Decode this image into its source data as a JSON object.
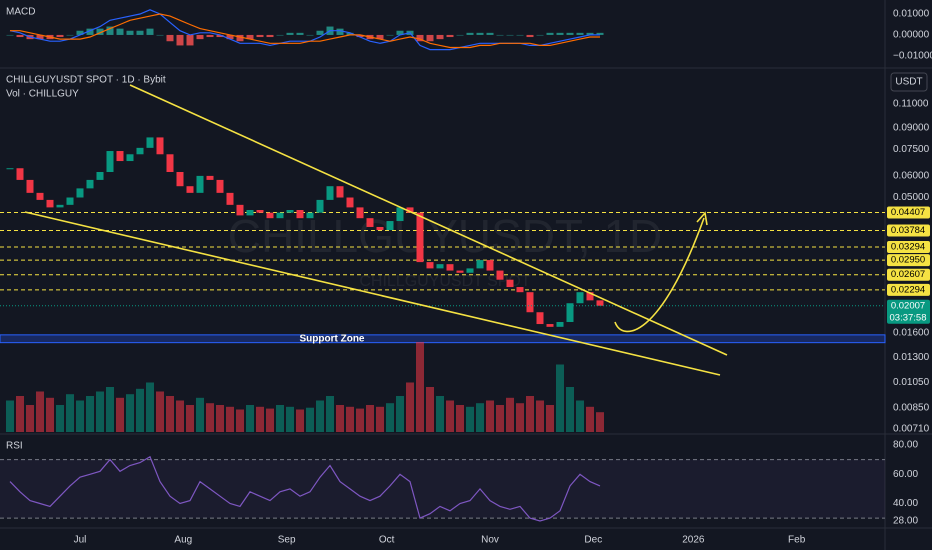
{
  "header": {
    "macd_label": "MACD",
    "symbol": "CHILLGUYUSDT SPOT · 1D · Bybit",
    "volume_label": "Vol · CHILLGUY",
    "rsi_label": "RSI",
    "currency": "USDT",
    "watermark": "CHILLGUYUSDT, 1D",
    "watermark_sub": "CHILLGUYUSDT SPOT"
  },
  "chart_data": {
    "type": "candlestick",
    "log_scale": true,
    "up_color": "#089981",
    "down_color": "#f23645",
    "x": [
      0,
      3,
      6,
      9,
      12,
      15,
      18,
      21,
      24,
      27,
      30,
      33,
      36,
      39,
      42,
      45,
      48,
      51,
      54,
      57,
      60,
      63,
      66,
      69,
      72,
      75,
      78,
      81,
      84,
      87,
      90,
      93,
      96,
      99,
      102,
      105,
      108,
      111,
      114,
      117,
      120,
      123,
      126,
      129,
      132,
      135,
      138,
      141,
      144,
      147,
      150,
      153,
      156,
      159,
      162,
      165,
      168,
      171,
      174,
      177
    ],
    "xlim": [
      -3,
      262.5
    ],
    "xticks": [
      {
        "value": 21,
        "label": "Jul"
      },
      {
        "value": 52,
        "label": "Aug"
      },
      {
        "value": 83,
        "label": "Sep"
      },
      {
        "value": 113,
        "label": "Oct"
      },
      {
        "value": 144,
        "label": "Nov"
      },
      {
        "value": 175,
        "label": "Dec"
      },
      {
        "value": 205,
        "label": "2026"
      },
      {
        "value": 236,
        "label": "Feb"
      }
    ],
    "close": [
      0.064,
      0.058,
      0.052,
      0.049,
      0.046,
      0.047,
      0.05,
      0.054,
      0.058,
      0.062,
      0.074,
      0.068,
      0.072,
      0.076,
      0.083,
      0.072,
      0.062,
      0.055,
      0.052,
      0.06,
      0.058,
      0.052,
      0.047,
      0.043,
      0.045,
      0.044,
      0.042,
      0.044,
      0.045,
      0.042,
      0.044,
      0.049,
      0.055,
      0.05,
      0.046,
      0.042,
      0.039,
      0.038,
      0.041,
      0.046,
      0.044,
      0.029,
      0.0275,
      0.0285,
      0.027,
      0.0265,
      0.0275,
      0.0295,
      0.027,
      0.025,
      0.0235,
      0.0225,
      0.019,
      0.0172,
      0.0168,
      0.0175,
      0.0205,
      0.0225,
      0.021,
      0.02007
    ],
    "ylim": [
      0.00692,
      0.1441
    ],
    "yticks": [
      {
        "value": 0.11,
        "label": "0.11000"
      },
      {
        "value": 0.09,
        "label": "0.09000"
      },
      {
        "value": 0.075,
        "label": "0.07500"
      },
      {
        "value": 0.06,
        "label": "0.06000"
      },
      {
        "value": 0.05,
        "label": "0.05000"
      },
      {
        "value": 0.016,
        "label": "0.01600"
      },
      {
        "value": 0.013,
        "label": "0.01300"
      },
      {
        "value": 0.0105,
        "label": "0.01050"
      },
      {
        "value": 0.0085,
        "label": "0.00850"
      },
      {
        "value": 0.0071,
        "label": "0.00710"
      }
    ],
    "levels": {
      "color": "#f5e243",
      "values": [
        0.04407,
        0.03784,
        0.03294,
        {
          "value": 0.0295,
          "label": "0.02950"
        },
        0.02607,
        0.02294
      ]
    },
    "last_price": {
      "value": 0.02007,
      "countdown": "03:37:58",
      "color": "#089981"
    },
    "support_zone": {
      "label": "Support Zone",
      "range": [
        0.0147,
        0.0157
      ]
    },
    "volume": [
      35,
      40,
      30,
      45,
      38,
      30,
      42,
      35,
      40,
      45,
      50,
      38,
      42,
      48,
      55,
      45,
      40,
      35,
      30,
      38,
      32,
      30,
      28,
      25,
      30,
      28,
      26,
      30,
      28,
      25,
      27,
      35,
      40,
      30,
      28,
      26,
      30,
      28,
      32,
      40,
      55,
      100,
      50,
      40,
      35,
      30,
      28,
      32,
      35,
      30,
      38,
      32,
      40,
      35,
      30,
      75,
      50,
      35,
      28,
      22
    ],
    "macd": {
      "ylim": [
        -0.0148,
        0.0157
      ],
      "yticks": [
        {
          "value": 0.01,
          "label": "0.01000"
        },
        {
          "value": 0,
          "label": "0.00000"
        },
        {
          "value": -0.01,
          "label": "−0.01000"
        }
      ],
      "macd_color": "#2962ff",
      "signal_color": "#ff6d00",
      "macd": [
        0.002,
        0.001,
        -0.001,
        -0.002,
        -0.003,
        -0.003,
        -0.002,
        0,
        0.002,
        0.004,
        0.007,
        0.008,
        0.009,
        0.01,
        0.012,
        0.01,
        0.006,
        0.002,
        0,
        0.001,
        0.001,
        0,
        -0.002,
        -0.004,
        -0.004,
        -0.004,
        -0.005,
        -0.004,
        -0.003,
        -0.003,
        -0.003,
        -0.001,
        0.002,
        0.002,
        0.001,
        -0.001,
        -0.003,
        -0.004,
        -0.003,
        0,
        0.001,
        -0.005,
        -0.007,
        -0.007,
        -0.007,
        -0.006,
        -0.005,
        -0.004,
        -0.004,
        -0.004,
        -0.004,
        -0.004,
        -0.005,
        -0.005,
        -0.004,
        -0.003,
        -0.002,
        -0.001,
        0,
        0
      ],
      "signal": [
        0.002,
        0.002,
        0.001,
        0,
        -0.001,
        -0.002,
        -0.002,
        -0.002,
        -0.001,
        0.001,
        0.003,
        0.005,
        0.007,
        0.008,
        0.009,
        0.01,
        0.009,
        0.007,
        0.005,
        0.003,
        0.002,
        0.001,
        0,
        -0.001,
        -0.002,
        -0.003,
        -0.004,
        -0.004,
        -0.004,
        -0.004,
        -0.003,
        -0.003,
        -0.002,
        -0.001,
        0,
        0,
        -0.001,
        -0.002,
        -0.003,
        -0.002,
        -0.001,
        -0.002,
        -0.004,
        -0.005,
        -0.006,
        -0.006,
        -0.006,
        -0.005,
        -0.005,
        -0.004,
        -0.004,
        -0.004,
        -0.004,
        -0.005,
        -0.005,
        -0.004,
        -0.003,
        -0.002,
        -0.001,
        -0.001
      ],
      "histogram": [
        0,
        -0.001,
        -0.002,
        -0.002,
        -0.002,
        -0.001,
        0,
        0.002,
        0.003,
        0.003,
        0.004,
        0.003,
        0.002,
        0.002,
        0.003,
        0,
        -0.003,
        -0.005,
        -0.005,
        -0.002,
        -0.001,
        -0.001,
        -0.002,
        -0.003,
        -0.002,
        -0.001,
        -0.001,
        0,
        0.001,
        0.001,
        0,
        0.002,
        0.004,
        0.003,
        0.001,
        -0.001,
        -0.002,
        -0.002,
        0,
        0.002,
        0.002,
        -0.003,
        -0.003,
        -0.002,
        -0.001,
        0,
        0.001,
        0.001,
        0.001,
        0,
        0,
        0,
        -0.001,
        0,
        0.001,
        0.001,
        0.001,
        0.001,
        0.001,
        0.001
      ]
    },
    "rsi": {
      "ylim": [
        24.6,
        84.8
      ],
      "yticks": [
        {
          "value": 80,
          "label": "80.00"
        },
        {
          "value": 60,
          "label": "60.00"
        },
        {
          "value": 40,
          "label": "40.00"
        },
        {
          "value": 28,
          "label": "28.00"
        }
      ],
      "bands": [
        70,
        30
      ],
      "color": "#7e57c2",
      "values": [
        55,
        48,
        42,
        40,
        38,
        45,
        52,
        58,
        60,
        62,
        70,
        62,
        66,
        68,
        72,
        55,
        45,
        40,
        42,
        55,
        50,
        45,
        40,
        38,
        48,
        45,
        42,
        48,
        50,
        45,
        48,
        58,
        66,
        55,
        50,
        45,
        42,
        45,
        52,
        60,
        55,
        30,
        33,
        38,
        35,
        40,
        42,
        50,
        42,
        38,
        36,
        38,
        30,
        28,
        30,
        35,
        52,
        60,
        55,
        52
      ]
    }
  }
}
